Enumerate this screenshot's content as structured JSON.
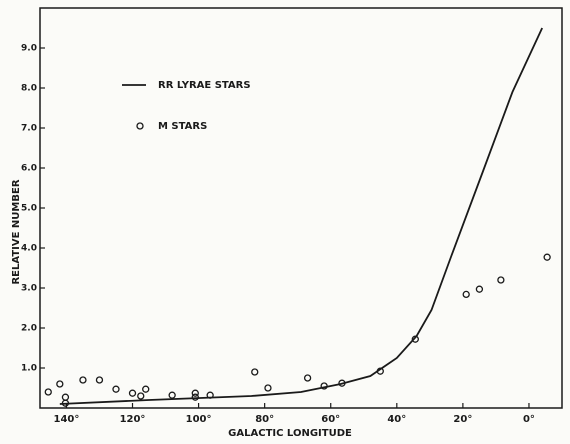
{
  "chart_data": {
    "type": "line",
    "xlabel": "GALACTIC LONGITUDE",
    "ylabel": "RELATIVE NUMBER",
    "xlim": [
      148,
      -10
    ],
    "ylim": [
      0,
      10
    ],
    "xticks": [
      {
        "value": 140,
        "label": "140°"
      },
      {
        "value": 120,
        "label": "120°"
      },
      {
        "value": 100,
        "label": "100°"
      },
      {
        "value": 80,
        "label": "80°"
      },
      {
        "value": 60,
        "label": "60°"
      },
      {
        "value": 40,
        "label": "40°"
      },
      {
        "value": 20,
        "label": "20°"
      },
      {
        "value": 0,
        "label": "0°"
      }
    ],
    "yticks": [
      {
        "value": 1,
        "label": "1.0"
      },
      {
        "value": 2,
        "label": "2.0"
      },
      {
        "value": 3,
        "label": "3.0"
      },
      {
        "value": 4,
        "label": "4.0"
      },
      {
        "value": 5,
        "label": "5.0"
      },
      {
        "value": 6,
        "label": "6.0"
      },
      {
        "value": 7,
        "label": "7.0"
      },
      {
        "value": 8,
        "label": "8.0"
      },
      {
        "value": 9,
        "label": "9.0"
      }
    ],
    "grid": false,
    "legend": "upper left",
    "series": [
      {
        "name": "RR LYRAE STARS",
        "type": "line",
        "color": "#1a1a1a",
        "x": [
          142,
          115,
          84,
          69,
          57,
          48,
          40,
          34,
          29.5,
          23.5,
          14,
          5,
          -4
        ],
        "values": [
          0.1,
          0.2,
          0.3,
          0.4,
          0.6,
          0.8,
          1.25,
          1.8,
          2.45,
          3.8,
          5.9,
          7.9,
          9.5
        ]
      },
      {
        "name": "M STARS",
        "type": "scatter",
        "color": "#1a1a1a",
        "x": [
          145.5,
          142,
          140.3,
          140.3,
          135,
          130,
          125,
          120,
          117.5,
          116,
          108,
          101,
          101,
          96.5,
          83,
          79,
          67,
          62,
          56.6,
          45,
          34.4,
          19,
          15,
          8.5,
          -5.5
        ],
        "values": [
          0.4,
          0.6,
          0.27,
          0.12,
          0.7,
          0.7,
          0.47,
          0.37,
          0.3,
          0.47,
          0.32,
          0.27,
          0.37,
          0.32,
          0.9,
          0.5,
          0.75,
          0.55,
          0.62,
          0.92,
          1.72,
          2.84,
          2.97,
          3.2,
          3.77
        ]
      }
    ]
  }
}
